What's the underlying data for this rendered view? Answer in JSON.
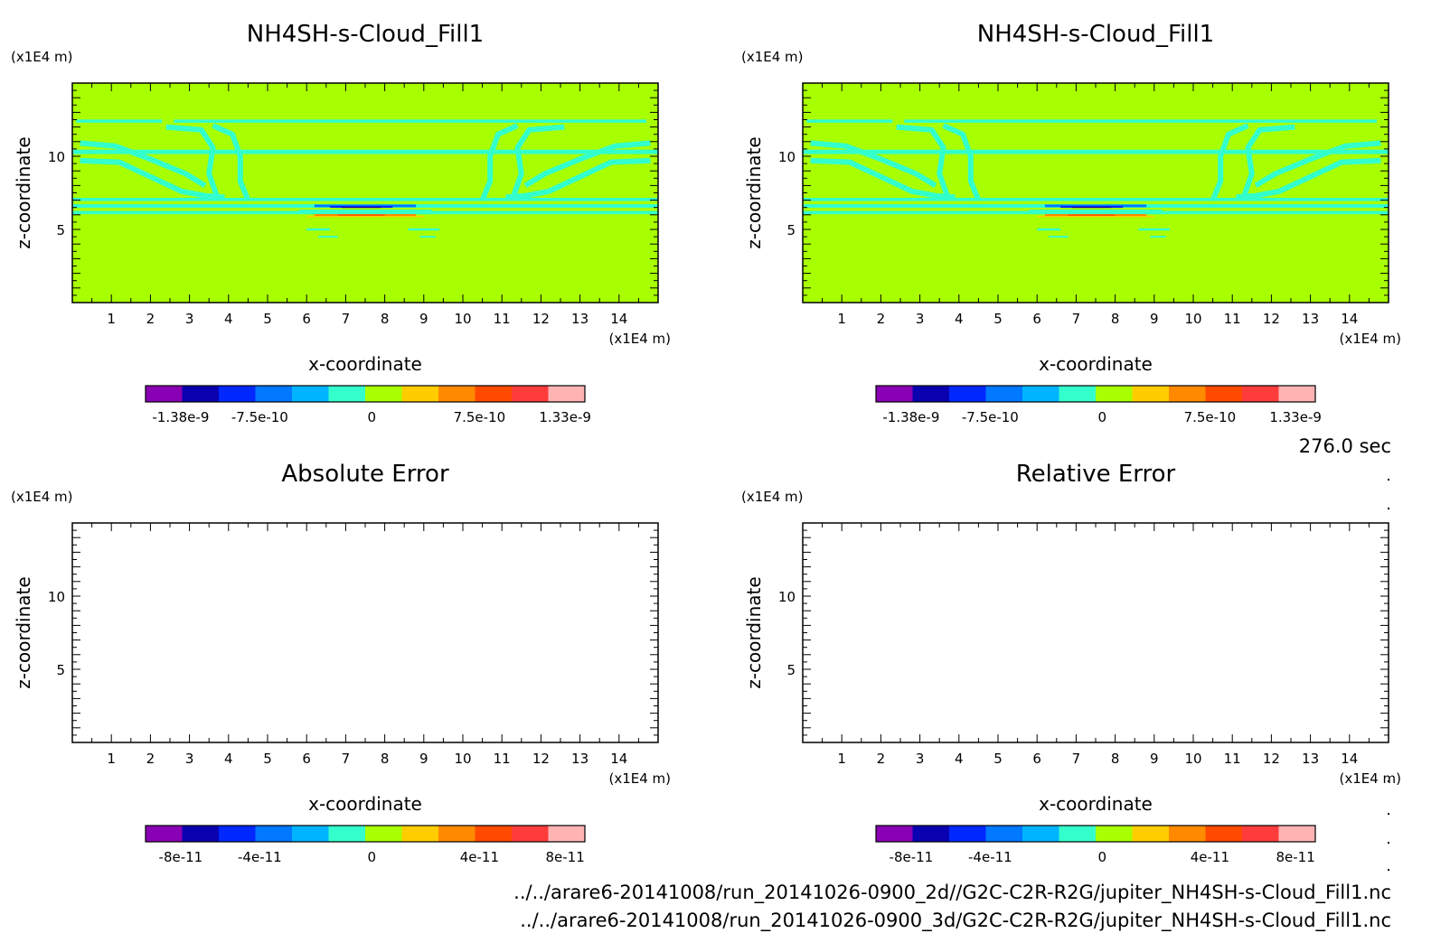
{
  "colors": {
    "background": "#a8ff00",
    "contour": "#33ffcc",
    "frame": "#000000"
  },
  "colorbar_colors": [
    "#8a00b4",
    "#0a00b0",
    "#0028ff",
    "#0078ff",
    "#00b4ff",
    "#33ffcc",
    "#a8ff00",
    "#ffcc00",
    "#ff8a00",
    "#ff4a00",
    "#ff3c3c",
    "#ffb4b4"
  ],
  "time_label": "276.0 sec",
  "footer": {
    "line1": "../../arare6-20141008/run_20141026-0900_2d//G2C-C2R-R2G/jupiter_NH4SH-s-Cloud_Fill1.nc",
    "line2": "../../arare6-20141008/run_20141026-0900_3d/G2C-C2R-R2G/jupiter_NH4SH-s-Cloud_Fill1.nc"
  },
  "chart_data": [
    {
      "type": "heatmap",
      "title": "NH4SH-s-Cloud_Fill1",
      "xlabel": "x-coordinate",
      "ylabel": "z-coordinate",
      "x_unit": "(x1E4 m)",
      "y_unit": "(x1E4 m)",
      "xlim": [
        0,
        15
      ],
      "ylim": [
        0,
        15
      ],
      "x_ticks": [
        "1",
        "2",
        "3",
        "4",
        "5",
        "6",
        "7",
        "8",
        "9",
        "10",
        "11",
        "12",
        "13",
        "14"
      ],
      "y_ticks": [
        "5",
        "10"
      ],
      "colorbar_labels": [
        "-1.38e-9",
        "-7.5e-10",
        "0",
        "7.5e-10",
        "1.33e-9"
      ],
      "filled": true
    },
    {
      "type": "heatmap",
      "title": "NH4SH-s-Cloud_Fill1",
      "xlabel": "x-coordinate",
      "ylabel": "z-coordinate",
      "x_unit": "(x1E4 m)",
      "y_unit": "(x1E4 m)",
      "xlim": [
        0,
        15
      ],
      "ylim": [
        0,
        15
      ],
      "x_ticks": [
        "1",
        "2",
        "3",
        "4",
        "5",
        "6",
        "7",
        "8",
        "9",
        "10",
        "11",
        "12",
        "13",
        "14"
      ],
      "y_ticks": [
        "5",
        "10"
      ],
      "colorbar_labels": [
        "-1.38e-9",
        "-7.5e-10",
        "0",
        "7.5e-10",
        "1.33e-9"
      ],
      "filled": true
    },
    {
      "type": "heatmap",
      "title": "Absolute Error",
      "xlabel": "x-coordinate",
      "ylabel": "z-coordinate",
      "x_unit": "(x1E4 m)",
      "y_unit": "(x1E4 m)",
      "xlim": [
        0,
        15
      ],
      "ylim": [
        0,
        15
      ],
      "x_ticks": [
        "1",
        "2",
        "3",
        "4",
        "5",
        "6",
        "7",
        "8",
        "9",
        "10",
        "11",
        "12",
        "13",
        "14"
      ],
      "y_ticks": [
        "5",
        "10"
      ],
      "colorbar_labels": [
        "-8e-11",
        "-4e-11",
        "0",
        "4e-11",
        "8e-11"
      ],
      "filled": false
    },
    {
      "type": "heatmap",
      "title": "Relative Error",
      "xlabel": "x-coordinate",
      "ylabel": "z-coordinate",
      "x_unit": "(x1E4 m)",
      "y_unit": "(x1E4 m)",
      "xlim": [
        0,
        15
      ],
      "ylim": [
        0,
        15
      ],
      "x_ticks": [
        "1",
        "2",
        "3",
        "4",
        "5",
        "6",
        "7",
        "8",
        "9",
        "10",
        "11",
        "12",
        "13",
        "14"
      ],
      "y_ticks": [
        "5",
        "10"
      ],
      "colorbar_labels": [
        "-8e-11",
        "-4e-11",
        "0",
        "4e-11",
        "8e-11"
      ],
      "filled": false
    }
  ]
}
